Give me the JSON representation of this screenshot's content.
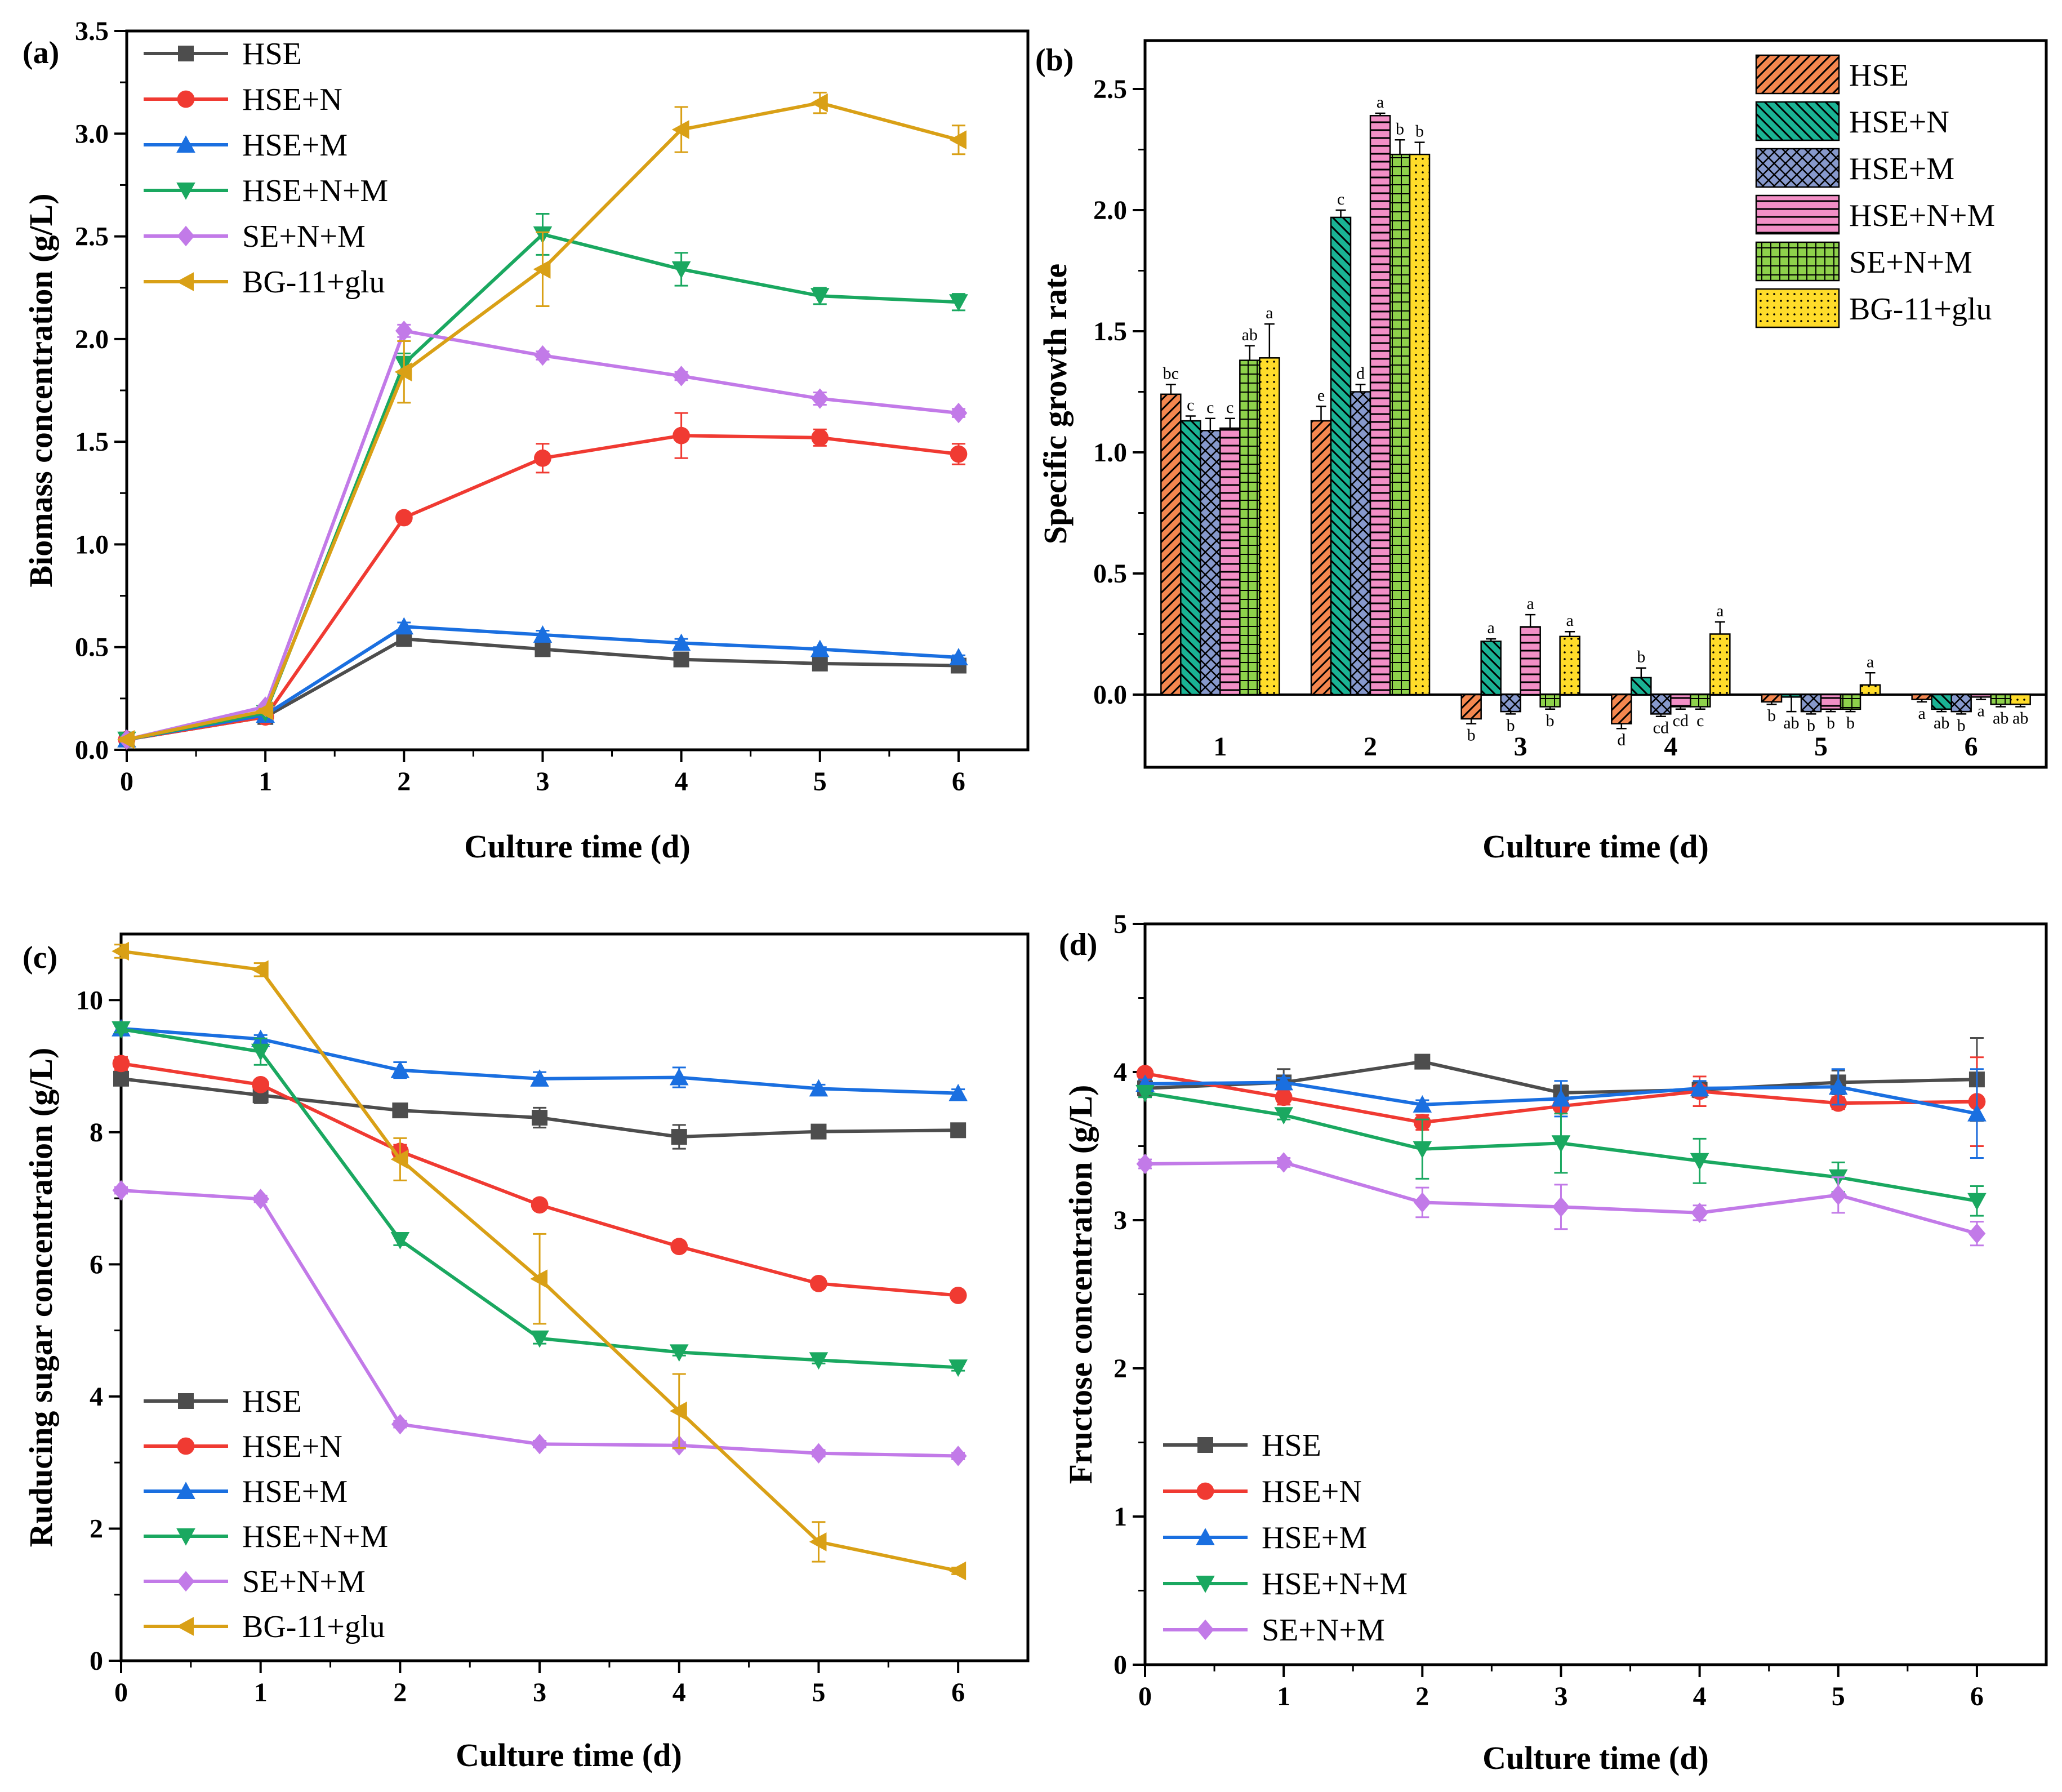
{
  "series_colors": {
    "HSE": "#4d4d4d",
    "HSE+N": "#f03a32",
    "HSE+M": "#1a6fe0",
    "HSE+N+M": "#1aa860",
    "SE+N+M": "#c27ae8",
    "BG-11+glu": "#d9a016"
  },
  "chart_data": [
    {
      "panel": "(a)",
      "type": "line",
      "xlabel": "Culture time (d)",
      "ylabel": "Biomass concentration (g/L)",
      "xlim": [
        0,
        6.5
      ],
      "ylim": [
        0,
        3.5
      ],
      "x_ticks": [
        "0",
        "1",
        "2",
        "3",
        "4",
        "5",
        "6"
      ],
      "y_ticks": [
        "0.0",
        "0.5",
        "1.0",
        "1.5",
        "2.0",
        "2.5",
        "3.0",
        "3.5"
      ],
      "x": [
        0,
        1,
        2,
        3,
        4,
        5,
        6
      ],
      "legend_position": "top-left",
      "series": [
        {
          "name": "HSE",
          "marker": "square",
          "values": [
            0.05,
            0.16,
            0.54,
            0.49,
            0.44,
            0.42,
            0.41
          ],
          "errors": [
            0.01,
            0.01,
            0.02,
            0.02,
            0.02,
            0.01,
            0.01
          ]
        },
        {
          "name": "HSE+N",
          "marker": "circle",
          "values": [
            0.05,
            0.16,
            1.13,
            1.42,
            1.53,
            1.52,
            1.44
          ],
          "errors": [
            0.01,
            0.01,
            0.02,
            0.07,
            0.11,
            0.04,
            0.05
          ]
        },
        {
          "name": "HSE+M",
          "marker": "triangle-up",
          "values": [
            0.05,
            0.17,
            0.6,
            0.56,
            0.52,
            0.49,
            0.45
          ],
          "errors": [
            0.01,
            0.01,
            0.02,
            0.02,
            0.02,
            0.01,
            0.01
          ]
        },
        {
          "name": "HSE+N+M",
          "marker": "triangle-down",
          "values": [
            0.05,
            0.18,
            1.88,
            2.51,
            2.34,
            2.21,
            2.18
          ],
          "errors": [
            0.01,
            0.01,
            0.05,
            0.1,
            0.08,
            0.04,
            0.04
          ]
        },
        {
          "name": "SE+N+M",
          "marker": "diamond",
          "values": [
            0.05,
            0.21,
            2.04,
            1.92,
            1.82,
            1.71,
            1.64
          ],
          "errors": [
            0.01,
            0.01,
            0.03,
            0.02,
            0.02,
            0.03,
            0.02
          ]
        },
        {
          "name": "BG-11+glu",
          "marker": "triangle-left",
          "values": [
            0.05,
            0.19,
            1.84,
            2.34,
            3.02,
            3.15,
            2.97
          ],
          "errors": [
            0.01,
            0.01,
            0.15,
            0.18,
            0.11,
            0.05,
            0.07
          ]
        }
      ]
    },
    {
      "panel": "(b)",
      "type": "bar",
      "xlabel": "Culture time (d)",
      "ylabel": "Specific growth rate",
      "ylim": [
        -0.3,
        2.7
      ],
      "y_ticks": [
        "0.0",
        "0.5",
        "1.0",
        "1.5",
        "2.0",
        "2.5"
      ],
      "categories": [
        "1",
        "2",
        "3",
        "4",
        "5",
        "6"
      ],
      "legend_position": "top-right",
      "series": [
        {
          "name": "HSE",
          "pattern": "diagonal",
          "values": [
            1.24,
            1.13,
            -0.1,
            -0.12,
            -0.03,
            -0.02
          ],
          "errors": [
            0.04,
            0.06,
            0.02,
            0.02,
            0.01,
            0.01
          ],
          "letters": [
            "bc",
            "e",
            "b",
            "d",
            "b",
            "a"
          ]
        },
        {
          "name": "HSE+N",
          "pattern": "back-diagonal",
          "values": [
            1.13,
            1.97,
            0.22,
            0.07,
            -0.01,
            -0.06
          ],
          "errors": [
            0.02,
            0.03,
            0.01,
            0.04,
            0.06,
            0.01
          ],
          "letters": [
            "c",
            "c",
            "a",
            "b",
            "ab",
            "ab"
          ]
        },
        {
          "name": "HSE+M",
          "pattern": "crosshatch",
          "values": [
            1.09,
            1.25,
            -0.07,
            -0.08,
            -0.07,
            -0.07
          ],
          "errors": [
            0.05,
            0.03,
            0.01,
            0.01,
            0.01,
            0.01
          ],
          "letters": [
            "c",
            "d",
            "b",
            "cd",
            "b",
            "b"
          ]
        },
        {
          "name": "HSE+N+M",
          "pattern": "horizontal",
          "values": [
            1.1,
            2.39,
            0.28,
            -0.05,
            -0.06,
            -0.01
          ],
          "errors": [
            0.04,
            0.01,
            0.05,
            0.01,
            0.01,
            0.01
          ],
          "letters": [
            "c",
            "a",
            "a",
            "cd",
            "b",
            "a"
          ]
        },
        {
          "name": "SE+N+M",
          "pattern": "grid",
          "values": [
            1.38,
            2.23,
            -0.05,
            -0.05,
            -0.06,
            -0.04
          ],
          "errors": [
            0.06,
            0.06,
            0.01,
            0.01,
            0.01,
            0.01
          ],
          "letters": [
            "ab",
            "b",
            "b",
            "c",
            "b",
            "ab"
          ]
        },
        {
          "name": "BG-11+glu",
          "pattern": "dots",
          "values": [
            1.39,
            2.23,
            0.24,
            0.25,
            0.04,
            -0.04
          ],
          "errors": [
            0.14,
            0.05,
            0.02,
            0.05,
            0.05,
            0.01
          ],
          "letters": [
            "a",
            "b",
            "a",
            "a",
            "a",
            "ab"
          ]
        }
      ]
    },
    {
      "panel": "(c)",
      "type": "line",
      "xlabel": "Culture time (d)",
      "ylabel": "Ruducing sugar concentration (g/L)",
      "xlim": [
        0,
        6.5
      ],
      "ylim": [
        0,
        11
      ],
      "x_ticks": [
        "0",
        "1",
        "2",
        "3",
        "4",
        "5",
        "6"
      ],
      "y_ticks": [
        "0",
        "2",
        "4",
        "6",
        "8",
        "10"
      ],
      "x": [
        0,
        1,
        2,
        3,
        4,
        5,
        6
      ],
      "legend_position": "bottom-left",
      "series": [
        {
          "name": "HSE",
          "marker": "square",
          "values": [
            8.81,
            8.56,
            8.33,
            8.22,
            7.93,
            8.01,
            8.03
          ],
          "errors": [
            0.1,
            0.12,
            0.08,
            0.15,
            0.18,
            0.05,
            0.05
          ]
        },
        {
          "name": "HSE+N",
          "marker": "circle",
          "values": [
            9.04,
            8.72,
            7.71,
            6.9,
            6.27,
            5.71,
            5.53
          ],
          "errors": [
            0.1,
            0.06,
            0.1,
            0.08,
            0.05,
            0.05,
            0.06
          ]
        },
        {
          "name": "HSE+M",
          "marker": "triangle-up",
          "values": [
            9.57,
            9.41,
            8.94,
            8.81,
            8.83,
            8.66,
            8.59
          ],
          "errors": [
            0.05,
            0.06,
            0.12,
            0.1,
            0.15,
            0.06,
            0.06
          ]
        },
        {
          "name": "HSE+N+M",
          "marker": "triangle-down",
          "values": [
            9.56,
            9.22,
            6.37,
            4.88,
            4.67,
            4.55,
            4.44
          ],
          "errors": [
            0.05,
            0.2,
            0.08,
            0.08,
            0.05,
            0.05,
            0.05
          ]
        },
        {
          "name": "SE+N+M",
          "marker": "diamond",
          "values": [
            7.12,
            6.99,
            3.58,
            3.28,
            3.26,
            3.14,
            3.1
          ],
          "errors": [
            0.05,
            0.05,
            0.05,
            0.05,
            0.05,
            0.05,
            0.05
          ]
        },
        {
          "name": "BG-11+glu",
          "marker": "triangle-left",
          "values": [
            10.74,
            10.46,
            7.59,
            5.78,
            3.78,
            1.8,
            1.36
          ],
          "errors": [
            0.1,
            0.1,
            0.32,
            0.68,
            0.56,
            0.3,
            0.05
          ]
        }
      ]
    },
    {
      "panel": "(d)",
      "type": "line",
      "xlabel": "Culture time (d)",
      "ylabel": "Fructose concentration (g/L)",
      "xlim": [
        0,
        6.5
      ],
      "ylim": [
        0,
        5
      ],
      "x_ticks": [
        "0",
        "1",
        "2",
        "3",
        "4",
        "5",
        "6"
      ],
      "y_ticks": [
        "0",
        "1",
        "2",
        "3",
        "4",
        "5"
      ],
      "x": [
        0,
        1,
        2,
        3,
        4,
        5,
        6
      ],
      "legend_position": "bottom-left",
      "series": [
        {
          "name": "HSE",
          "marker": "square",
          "values": [
            3.89,
            3.93,
            4.07,
            3.86,
            3.88,
            3.93,
            3.95
          ],
          "errors": [
            0.05,
            0.09,
            0.03,
            0.05,
            0.05,
            0.08,
            0.28
          ]
        },
        {
          "name": "HSE+N",
          "marker": "circle",
          "values": [
            3.99,
            3.83,
            3.66,
            3.77,
            3.87,
            3.79,
            3.8
          ],
          "errors": [
            0.03,
            0.05,
            0.05,
            0.05,
            0.1,
            0.04,
            0.3
          ]
        },
        {
          "name": "HSE+M",
          "marker": "triangle-up",
          "values": [
            3.92,
            3.93,
            3.78,
            3.82,
            3.89,
            3.9,
            3.72
          ],
          "errors": [
            0.03,
            0.03,
            0.03,
            0.12,
            0.05,
            0.12,
            0.3
          ]
        },
        {
          "name": "HSE+N+M",
          "marker": "triangle-down",
          "values": [
            3.86,
            3.71,
            3.48,
            3.52,
            3.4,
            3.29,
            3.13
          ],
          "errors": [
            0.03,
            0.03,
            0.2,
            0.2,
            0.15,
            0.1,
            0.1
          ]
        },
        {
          "name": "SE+N+M",
          "marker": "diamond",
          "values": [
            3.38,
            3.39,
            3.12,
            3.09,
            3.05,
            3.17,
            2.91
          ],
          "errors": [
            0.03,
            0.03,
            0.1,
            0.15,
            0.05,
            0.12,
            0.08
          ]
        }
      ]
    }
  ]
}
